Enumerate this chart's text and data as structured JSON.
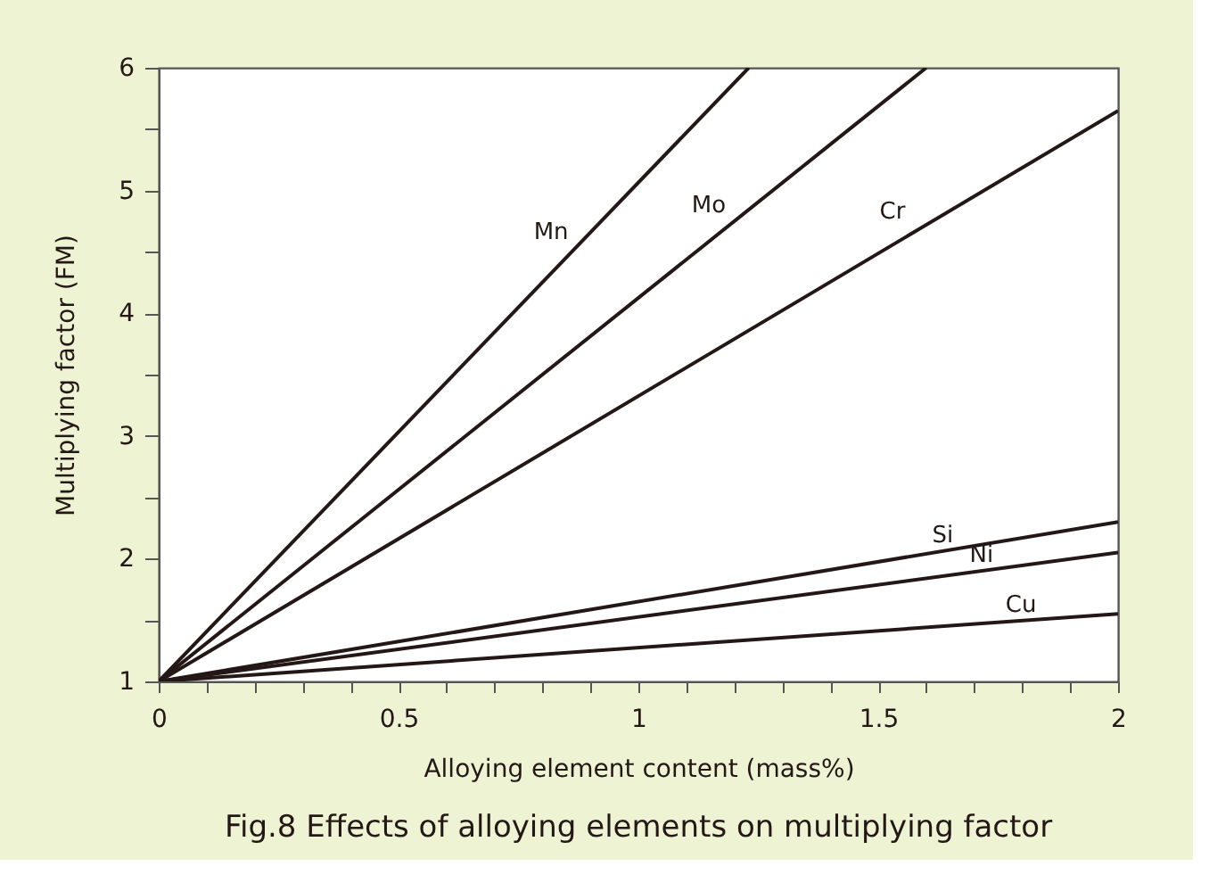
{
  "chart_data": {
    "type": "line",
    "title": "Fig.8 Effects of alloying elements on multiplying factor",
    "xlabel": "Alloying element content (mass%)",
    "ylabel": "Multiplying factor (FM)",
    "series": [
      {
        "name": "Mn",
        "color": "#231815",
        "x": [
          0,
          1.23
        ],
        "values": [
          1,
          6
        ]
      },
      {
        "name": "Mo",
        "color": "#231815",
        "x": [
          0,
          1.6
        ],
        "values": [
          1,
          6
        ]
      },
      {
        "name": "Cr",
        "color": "#231815",
        "x": [
          0,
          2
        ],
        "values": [
          1,
          5.65
        ]
      },
      {
        "name": "Si",
        "color": "#231815",
        "x": [
          0,
          2
        ],
        "values": [
          1,
          2.3
        ]
      },
      {
        "name": "Ni",
        "color": "#231815",
        "x": [
          0,
          2
        ],
        "values": [
          1,
          2.05
        ]
      },
      {
        "name": "Cu",
        "color": "#231815",
        "x": [
          0,
          2
        ],
        "values": [
          1,
          1.55
        ]
      }
    ],
    "xlim": [
      0,
      2
    ],
    "ylim": [
      1,
      6
    ],
    "xticks": [
      0,
      {
        "value": 0.1,
        "label": null
      },
      {
        "value": 0.2,
        "label": null
      },
      {
        "value": 0.3,
        "label": null
      },
      {
        "value": 0.4,
        "label": null
      },
      0.5,
      {
        "value": 0.6,
        "label": null
      },
      {
        "value": 0.7,
        "label": null
      },
      {
        "value": 0.8,
        "label": null
      },
      {
        "value": 0.9,
        "label": null
      },
      1,
      {
        "value": 1.1,
        "label": null
      },
      {
        "value": 1.2,
        "label": null
      },
      {
        "value": 1.3,
        "label": null
      },
      {
        "value": 1.4,
        "label": null
      },
      1.5,
      {
        "value": 1.6,
        "label": null
      },
      {
        "value": 1.7,
        "label": null
      },
      {
        "value": 1.8,
        "label": null
      },
      {
        "value": 1.9,
        "label": null
      },
      2
    ],
    "yticks": [
      1,
      {
        "value": 1.5,
        "label": null
      },
      2,
      {
        "value": 2.5,
        "label": null
      },
      3,
      {
        "value": 3.5,
        "label": null
      },
      4,
      {
        "value": 4.5,
        "label": null
      },
      5,
      {
        "value": 5.5,
        "label": null
      },
      6
    ],
    "grid": false,
    "legend": false,
    "marker": "none",
    "line_style": "solid"
  }
}
